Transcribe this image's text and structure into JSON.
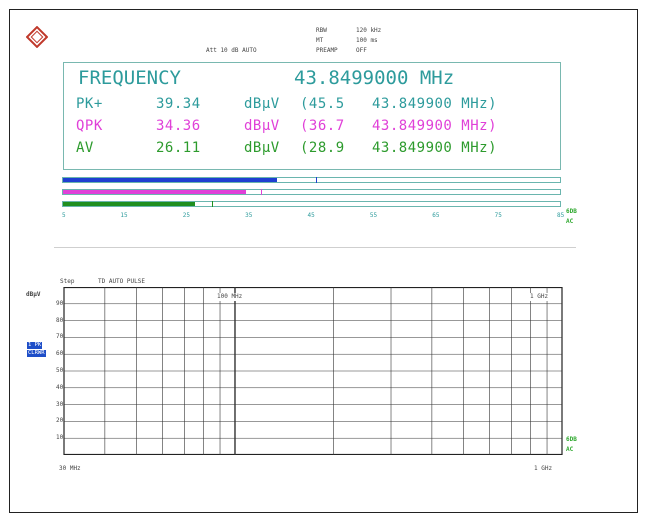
{
  "settings": {
    "rbw_label": "RBW",
    "rbw_value": "120 kHz",
    "mt_label": "MT",
    "mt_value": "100 ms",
    "att": "Att 10 dB AUTO",
    "preamp_label": "PREAMP",
    "preamp_value": "OFF"
  },
  "readout": {
    "title": "FREQUENCY",
    "frequency": "43.8499000 MHz",
    "rows": [
      {
        "label": "PK+",
        "value": "39.34",
        "unit": "dBµV",
        "extra": "(45.5",
        "freq": "43.849900 MHz)",
        "color": "#2d9b9c"
      },
      {
        "label": "QPK",
        "value": "34.36",
        "unit": "dBµV",
        "extra": "(36.7",
        "freq": "43.849900 MHz)",
        "color": "#e040d8"
      },
      {
        "label": "AV",
        "value": "26.11",
        "unit": "dBµV",
        "extra": "(28.9",
        "freq": "43.849900 MHz)",
        "color": "#2d9b2d"
      }
    ]
  },
  "meters": [
    {
      "name": "pk",
      "color": "#1f3fd1",
      "level": 39.34,
      "peak": 45.5
    },
    {
      "name": "qpk",
      "color": "#e040d8",
      "level": 34.36,
      "peak": 36.7
    },
    {
      "name": "av",
      "color": "#1f8f1f",
      "level": 26.11,
      "peak": 28.9
    }
  ],
  "meter_scale": {
    "ticks": [
      "5",
      "15",
      "25",
      "35",
      "45",
      "55",
      "65",
      "75",
      "85"
    ],
    "min": 5,
    "max": 85
  },
  "side_labels": {
    "mid_top": "6DB",
    "mid_bottom": "AC",
    "low_top": "6DB",
    "low_bottom": "AC"
  },
  "sweep": {
    "step_label": "Step",
    "step_value": "TD AUTO PULSE",
    "unit": "dBµV",
    "trace_badge_1": "1 PK",
    "trace_badge_2": "CLRWR",
    "y_ticks": [
      "90",
      "80",
      "70",
      "60",
      "50",
      "40",
      "30",
      "20",
      "10"
    ],
    "x_mark_1": "100 MHz",
    "x_mark_2": "1 GHz",
    "x_start": "30 MHz",
    "x_stop": "1 GHz"
  },
  "colors": {
    "accent": "#2d9b9c",
    "badge": "#1e4ec8",
    "green": "#2ea82e"
  }
}
